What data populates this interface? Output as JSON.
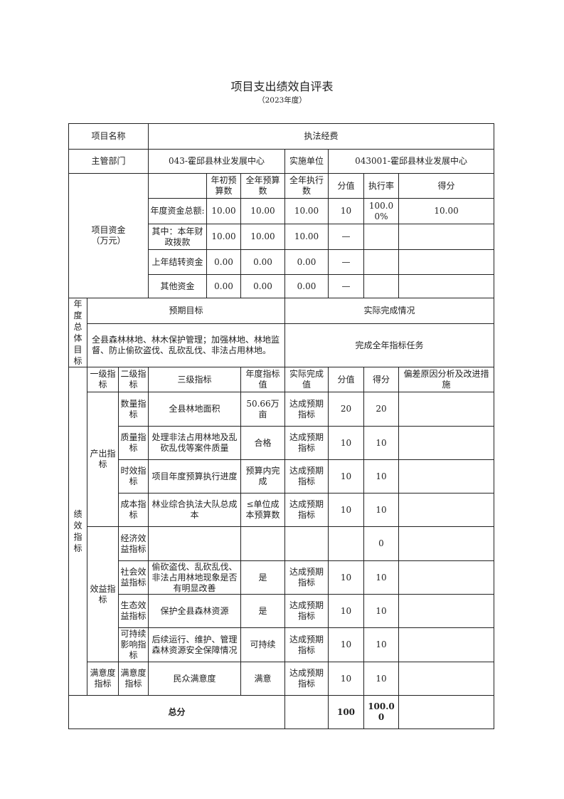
{
  "title": "项目支出绩效自评表",
  "subtitle": "（2023年度）",
  "project": {
    "name_label": "项目名称",
    "name_value": "执法经费",
    "dept_label": "主管部门",
    "dept_value": "043-霍邱县林业发展中心",
    "unit_label": "实施单位",
    "unit_value": "043001-霍邱县林业发展中心"
  },
  "funds": {
    "label": "项目资金\n（万元）",
    "headers": [
      "年初预算数",
      "全年预算数",
      "全年执行数",
      "分值",
      "执行率",
      "得分"
    ],
    "rows": [
      {
        "label": "年度资金总额:",
        "cells": [
          "10.00",
          "10.00",
          "10.00",
          "10",
          "100.00%",
          "10.00"
        ]
      },
      {
        "label": "其中：本年财政拨款",
        "cells": [
          "10.00",
          "10.00",
          "10.00",
          "—",
          "",
          ""
        ]
      },
      {
        "label": "上年结转资金",
        "cells": [
          "0.00",
          "0.00",
          "0.00",
          "—",
          "",
          ""
        ]
      },
      {
        "label": "其他资金",
        "cells": [
          "0.00",
          "0.00",
          "0.00",
          "—",
          "",
          ""
        ]
      }
    ]
  },
  "goals": {
    "label": "年度总体目标",
    "expected_header": "预期目标",
    "actual_header": "实际完成情况",
    "expected": "全县森林林地、林木保护管理；加强林地、林地监督、防止偷砍盗伐、乱砍乱伐、非法占用林地。",
    "actual": "完成全年指标任务"
  },
  "performance": {
    "label": "绩效指标",
    "headers": [
      "一级指标",
      "二级指标",
      "三级指标",
      "年度指标值",
      "实际完成值",
      "分值",
      "得分",
      "偏差原因分析及改进措施"
    ],
    "groups": [
      {
        "level1": "产出指标",
        "rows": [
          {
            "level2": "数量指标",
            "level3": "全县林地面积",
            "target": "50.66万亩",
            "actual": "达成预期指标",
            "weight": "20",
            "score": "20",
            "note": ""
          },
          {
            "level2": "质量指标",
            "level3": "处理非法占用林地及乱砍乱伐等案件质量",
            "target": "合格",
            "actual": "达成预期指标",
            "weight": "10",
            "score": "10",
            "note": ""
          },
          {
            "level2": "时效指标",
            "level3": "项目年度预算执行进度",
            "target": "预算内完成",
            "actual": "达成预期指标",
            "weight": "10",
            "score": "10",
            "note": ""
          },
          {
            "level2": "成本指标",
            "level3": "林业综合执法大队总成本",
            "target": "≤单位成本预算数",
            "actual": "达成预期指标",
            "weight": "10",
            "score": "10",
            "note": ""
          }
        ]
      },
      {
        "level1": "效益指标",
        "rows": [
          {
            "level2": "经济效益指标",
            "level3": "",
            "target": "",
            "actual": "",
            "weight": "",
            "score": "0",
            "note": ""
          },
          {
            "level2": "社会效益指标",
            "level3": "偷砍盗伐、乱砍乱伐、非法占用林地现象是否有明显改善",
            "target": "是",
            "actual": "达成预期指标",
            "weight": "10",
            "score": "10",
            "note": ""
          },
          {
            "level2": "生态效益指标",
            "level3": "保护全县森林资源",
            "target": "是",
            "actual": "达成预期指标",
            "weight": "10",
            "score": "10",
            "note": ""
          },
          {
            "level2": "可持续影响指标",
            "level3": "后续运行、维护、管理森林资源安全保障情况",
            "target": "可持续",
            "actual": "达成预期指标",
            "weight": "10",
            "score": "10",
            "note": ""
          }
        ]
      },
      {
        "level1": "满意度指标",
        "rows": [
          {
            "level2": "满意度指标",
            "level3": "民众满意度",
            "target": "满意",
            "actual": "达成预期指标",
            "weight": "10",
            "score": "10",
            "note": ""
          }
        ]
      }
    ]
  },
  "total": {
    "label": "总分",
    "blank": "",
    "weight": "100",
    "score": "100.00",
    "note": ""
  }
}
